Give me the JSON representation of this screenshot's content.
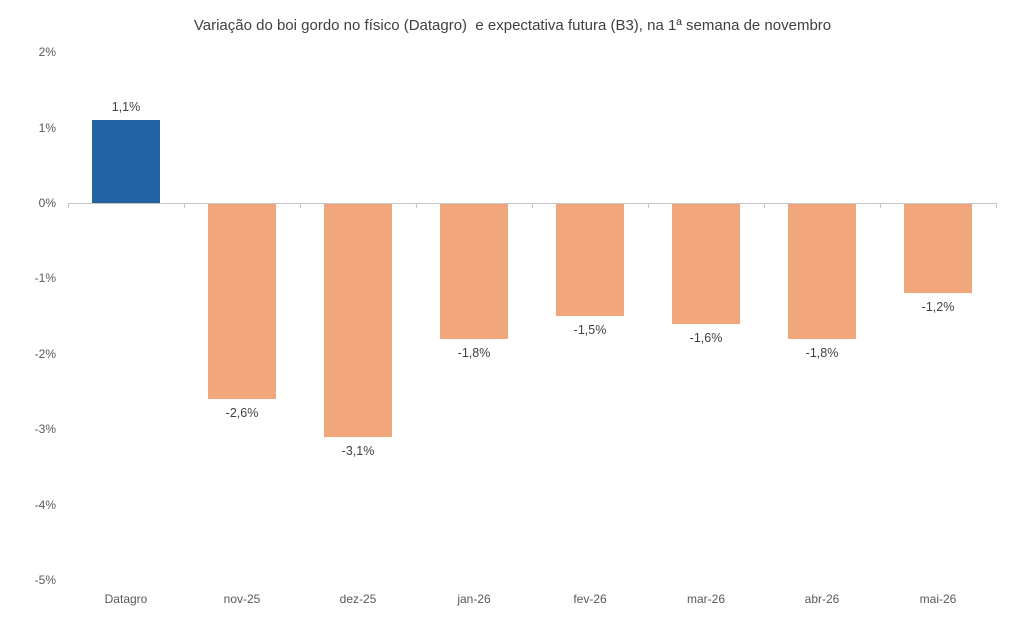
{
  "chart_data": {
    "type": "bar",
    "title": "Variação do boi gordo no físico (Datagro)  e expectativa futura (B3), na 1ª semana de novembro",
    "categories": [
      "Datagro",
      "nov-25",
      "dez-25",
      "jan-26",
      "fev-26",
      "mar-26",
      "abr-26",
      "mai-26"
    ],
    "values": [
      1.1,
      -2.6,
      -3.1,
      -1.8,
      -1.5,
      -1.6,
      -1.8,
      -1.2
    ],
    "data_labels": [
      "1,1%",
      "-2,6%",
      "-3,1%",
      "-1,8%",
      "-1,5%",
      "-1,6%",
      "-1,8%",
      "-1,2%"
    ],
    "bar_colors": [
      "#2163A3",
      "#F2A67C",
      "#F2A67C",
      "#F2A67C",
      "#F2A67C",
      "#F2A67C",
      "#F2A67C",
      "#F2A67C"
    ],
    "y_tick_labels": [
      "2%",
      "1%",
      "0%",
      "-1%",
      "-2%",
      "-3%",
      "-4%",
      "-5%"
    ],
    "y_tick_values": [
      2,
      1,
      0,
      -1,
      -2,
      -3,
      -4,
      -5
    ],
    "xlabel": "",
    "ylabel": "",
    "ylim": [
      -5,
      2
    ],
    "grid": false,
    "legend": "none",
    "colors": {
      "positive_bar": "#2163A3",
      "negative_bar": "#F2A67C",
      "axis_line": "#C6C6C6",
      "axis_text": "#595959",
      "data_label_text": "#404040",
      "title_text": "#404040",
      "background": "#FFFFFF"
    }
  }
}
